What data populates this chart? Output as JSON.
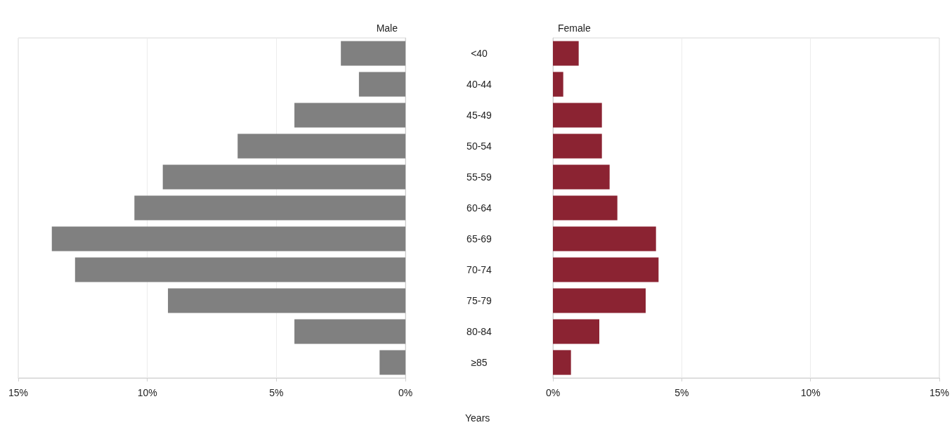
{
  "chart_data": [
    {
      "type": "bar",
      "orientation": "horizontal",
      "title": "Male",
      "grid": "x",
      "categories": [
        null,
        null,
        null,
        null,
        null,
        null,
        null,
        null,
        null,
        null,
        null
      ],
      "series": [
        {
          "color": "#808080",
          "values": [
            2.5,
            1.8,
            4.3,
            6.5,
            9.4,
            10.5,
            13.7,
            12.8,
            9.2,
            4.3,
            1.0
          ]
        }
      ],
      "xlim": [
        15,
        0
      ],
      "xticks": [
        {
          "value": 15,
          "label": "15%"
        },
        {
          "value": 10,
          "label": "10%"
        },
        {
          "value": 5,
          "label": "5%"
        },
        {
          "value": 0,
          "label": "0%"
        }
      ]
    },
    {
      "type": "bar",
      "orientation": "horizontal",
      "title": "Female",
      "xlabel": "Years",
      "grid": "x",
      "categories": [
        "<40",
        "40-44",
        "45-49",
        "50-54",
        "55-59",
        "60-64",
        "65-69",
        "70-74",
        "75-79",
        "80-84",
        "≥85"
      ],
      "series": [
        {
          "color": "#8b2332",
          "values": [
            1.0,
            0.4,
            1.9,
            1.9,
            2.2,
            2.5,
            4.0,
            4.1,
            3.6,
            1.8,
            0.7
          ]
        }
      ],
      "xlim": [
        0,
        15
      ],
      "xticks": [
        {
          "value": 0,
          "label": "0%"
        },
        {
          "value": 5,
          "label": "5%"
        },
        {
          "value": 10,
          "label": "10%"
        },
        {
          "value": 15,
          "label": "15%"
        }
      ]
    }
  ]
}
